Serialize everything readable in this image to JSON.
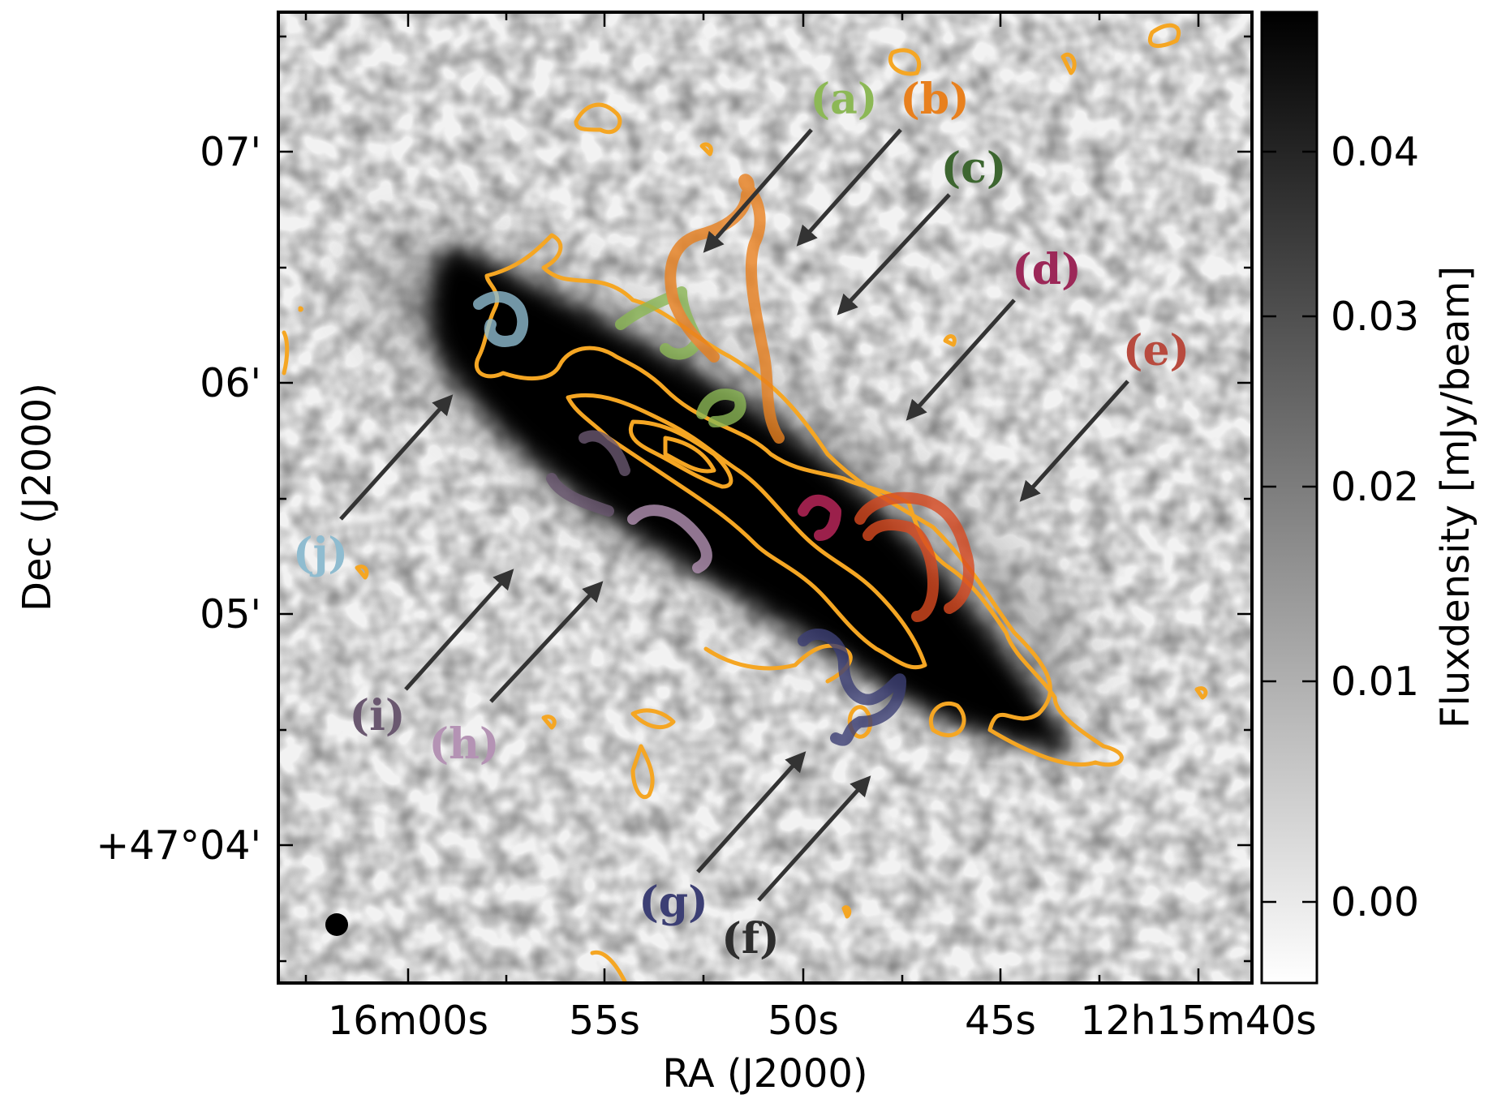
{
  "chart_data": {
    "type": "heatmap",
    "title": "",
    "xlabel": "RA (J2000)",
    "ylabel": "Dec (J2000)",
    "x_tick_labels": [
      "16m00s",
      "55s",
      "50s",
      "45s",
      "12h15m40s"
    ],
    "y_tick_labels": [
      "07'",
      "06'",
      "05'",
      "+47°04'"
    ],
    "colorbar": {
      "label": "Fluxdensity [mJy/beam]",
      "ticks": [
        0.04,
        0.03,
        0.02,
        0.01,
        0.0
      ],
      "tick_labels": [
        "0.04",
        "0.03",
        "0.02",
        "0.01",
        "0.00"
      ],
      "range": [
        -0.004,
        0.047
      ],
      "colormap": "gray_r"
    },
    "contour_color": "#f5a623",
    "regions": [
      {
        "label": "(a)",
        "color": "#8cb856"
      },
      {
        "label": "(b)",
        "color": "#e8801e"
      },
      {
        "label": "(c)",
        "color": "#3d6630"
      },
      {
        "label": "(d)",
        "color": "#9c2858"
      },
      {
        "label": "(e)",
        "color": "#b84a3e"
      },
      {
        "label": "(f)",
        "color": "#2e2e2e"
      },
      {
        "label": "(g)",
        "color": "#3c3f74"
      },
      {
        "label": "(h)",
        "color": "#b493b4"
      },
      {
        "label": "(i)",
        "color": "#6a5870"
      },
      {
        "label": "(j)",
        "color": "#8fbcd0"
      }
    ]
  }
}
